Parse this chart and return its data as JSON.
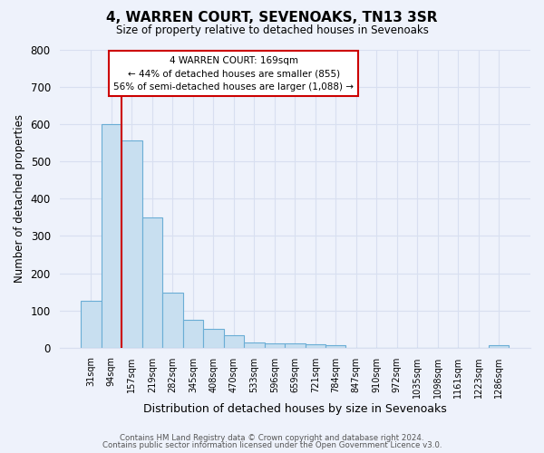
{
  "title": "4, WARREN COURT, SEVENOAKS, TN13 3SR",
  "subtitle": "Size of property relative to detached houses in Sevenoaks",
  "xlabel": "Distribution of detached houses by size in Sevenoaks",
  "ylabel": "Number of detached properties",
  "bar_labels": [
    "31sqm",
    "94sqm",
    "157sqm",
    "219sqm",
    "282sqm",
    "345sqm",
    "408sqm",
    "470sqm",
    "533sqm",
    "596sqm",
    "659sqm",
    "721sqm",
    "784sqm",
    "847sqm",
    "910sqm",
    "972sqm",
    "1035sqm",
    "1098sqm",
    "1161sqm",
    "1223sqm",
    "1286sqm"
  ],
  "bar_values": [
    127,
    601,
    556,
    349,
    148,
    75,
    50,
    34,
    14,
    12,
    12,
    10,
    7,
    0,
    0,
    0,
    0,
    0,
    0,
    0,
    6
  ],
  "bar_color": "#c8dff0",
  "bar_edge_color": "#6aadd5",
  "annotation_text_line1": "4 WARREN COURT: 169sqm",
  "annotation_text_line2": "← 44% of detached houses are smaller (855)",
  "annotation_text_line3": "56% of semi-detached houses are larger (1,088) →",
  "annotation_box_color": "#ffffff",
  "annotation_box_edge": "#cc0000",
  "vline_color": "#cc0000",
  "ylim": [
    0,
    800
  ],
  "yticks": [
    0,
    100,
    200,
    300,
    400,
    500,
    600,
    700,
    800
  ],
  "footer_line1": "Contains HM Land Registry data © Crown copyright and database right 2024.",
  "footer_line2": "Contains public sector information licensed under the Open Government Licence v3.0.",
  "bg_color": "#eef2fb",
  "grid_color": "#d8dff0"
}
